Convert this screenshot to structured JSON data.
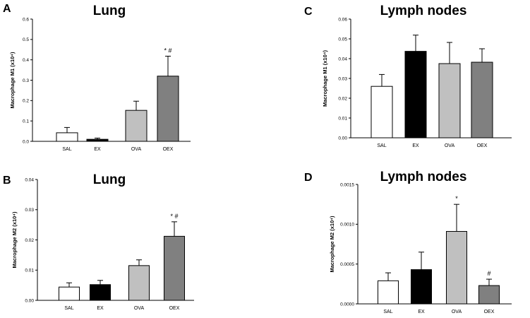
{
  "chart_data": [
    {
      "panel": "A",
      "type": "bar",
      "title": "Lung",
      "ylabel": "Macrophage M1 (x10⁴)",
      "ylim": [
        0,
        0.6
      ],
      "yticks": [
        0.0,
        0.1,
        0.2,
        0.3,
        0.4,
        0.5,
        0.6
      ],
      "ytick_labels": [
        "0.0",
        "0.1",
        "0.2",
        "0.3",
        "0.4",
        "0.5",
        "0.6"
      ],
      "categories": [
        "SAL",
        "EX",
        "OVA",
        "OEX"
      ],
      "values": [
        0.042,
        0.01,
        0.152,
        0.32
      ],
      "errors": [
        0.026,
        0.006,
        0.045,
        0.098
      ],
      "colors": [
        "#ffffff",
        "#000000",
        "#c0c0c0",
        "#808080"
      ],
      "annotations": [
        "",
        "",
        "",
        "* #"
      ]
    },
    {
      "panel": "B",
      "type": "bar",
      "title": "Lung",
      "ylabel": "Macrophage M2 (x10⁴)",
      "ylim": [
        0,
        0.04
      ],
      "yticks": [
        0.0,
        0.01,
        0.02,
        0.03,
        0.04
      ],
      "ytick_labels": [
        "0.00",
        "0.01",
        "0.02",
        "0.03",
        "0.04"
      ],
      "categories": [
        "SAL",
        "EX",
        "OVA",
        "OEX"
      ],
      "values": [
        0.0044,
        0.0052,
        0.0115,
        0.0212
      ],
      "errors": [
        0.0014,
        0.0014,
        0.0019,
        0.0048
      ],
      "colors": [
        "#ffffff",
        "#000000",
        "#c0c0c0",
        "#808080"
      ],
      "annotations": [
        "",
        "",
        "",
        "* #"
      ]
    },
    {
      "panel": "C",
      "type": "bar",
      "title": "Lymph nodes",
      "ylabel": "Macrophage M1 (x10⁴)",
      "ylim": [
        0,
        0.06
      ],
      "yticks": [
        0.0,
        0.01,
        0.02,
        0.03,
        0.04,
        0.05,
        0.06
      ],
      "ytick_labels": [
        "0.00",
        "0.01",
        "0.02",
        "0.03",
        "0.04",
        "0.05",
        "0.06"
      ],
      "categories": [
        "SAL",
        "EX",
        "OVA",
        "OEX"
      ],
      "values": [
        0.026,
        0.0437,
        0.0375,
        0.0382
      ],
      "errors": [
        0.006,
        0.0082,
        0.0107,
        0.0068
      ],
      "colors": [
        "#ffffff",
        "#000000",
        "#c0c0c0",
        "#808080"
      ],
      "annotations": [
        "",
        "",
        "",
        ""
      ]
    },
    {
      "panel": "D",
      "type": "bar",
      "title": "Lymph nodes",
      "ylabel": "Macrophage M2 (x10⁴)",
      "ylim": [
        0,
        0.0015
      ],
      "yticks": [
        0.0,
        0.0005,
        0.001,
        0.0015
      ],
      "ytick_labels": [
        "0.0000",
        "0.0005",
        "0.0010",
        "0.0015"
      ],
      "categories": [
        "SAL",
        "EX",
        "OVA",
        "OEX"
      ],
      "values": [
        0.00029,
        0.00043,
        0.00091,
        0.00023
      ],
      "errors": [
        0.0001,
        0.00022,
        0.00034,
        8e-05
      ],
      "colors": [
        "#ffffff",
        "#000000",
        "#c0c0c0",
        "#808080"
      ],
      "annotations": [
        "",
        "",
        "*",
        "#"
      ]
    }
  ]
}
